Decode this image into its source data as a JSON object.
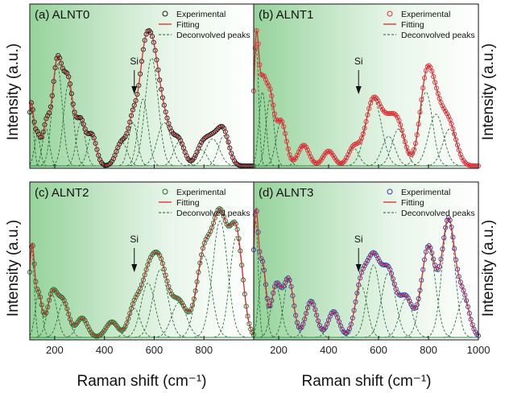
{
  "figure": {
    "xlabel": "Raman shift (cm⁻¹)",
    "ylabel": "Intensity (a.u.)",
    "annotation": "Si"
  },
  "legend": {
    "experimental": "Experimental",
    "fitting": "Fitting",
    "deconvolved": "Deconvolved peaks"
  },
  "colors": {
    "green_shade": "#3fae49",
    "baseline": "#2e8b3a",
    "peaks": "#1f5f2a",
    "fit": "#d92b2b"
  },
  "chart_data": [
    {
      "type": "line",
      "panel": "(a) ALNT0",
      "xlim": [
        100,
        1000
      ],
      "x_ticks": [
        200,
        400,
        600,
        800
      ],
      "marker_color": "#1a1a1a",
      "annotation": {
        "text": "Si",
        "x": 520
      },
      "peaks": [
        {
          "c": 105,
          "h": 0.55,
          "w": 10
        },
        {
          "c": 130,
          "h": 0.28,
          "w": 12
        },
        {
          "c": 165,
          "h": 0.35,
          "w": 14
        },
        {
          "c": 210,
          "h": 0.95,
          "w": 20
        },
        {
          "c": 255,
          "h": 0.75,
          "w": 20
        },
        {
          "c": 305,
          "h": 0.4,
          "w": 18
        },
        {
          "c": 350,
          "h": 0.28,
          "w": 18
        },
        {
          "c": 470,
          "h": 0.22,
          "w": 22
        },
        {
          "c": 515,
          "h": 0.4,
          "w": 18
        },
        {
          "c": 555,
          "h": 0.62,
          "w": 20
        },
        {
          "c": 590,
          "h": 1.0,
          "w": 26
        },
        {
          "c": 640,
          "h": 0.4,
          "w": 28
        },
        {
          "c": 700,
          "h": 0.22,
          "w": 22
        },
        {
          "c": 790,
          "h": 0.15,
          "w": 22
        },
        {
          "c": 835,
          "h": 0.25,
          "w": 28
        },
        {
          "c": 880,
          "h": 0.28,
          "w": 22
        }
      ]
    },
    {
      "type": "line",
      "panel": "(b) ALNT1",
      "xlim": [
        100,
        1000
      ],
      "x_ticks": [
        200,
        400,
        600,
        800,
        1000
      ],
      "marker_color": "#e0303a",
      "annotation": {
        "text": "Si",
        "x": 520
      },
      "peaks": [
        {
          "c": 110,
          "h": 0.8,
          "w": 10
        },
        {
          "c": 135,
          "h": 0.5,
          "w": 14
        },
        {
          "c": 165,
          "h": 0.45,
          "w": 16
        },
        {
          "c": 210,
          "h": 0.3,
          "w": 20
        },
        {
          "c": 300,
          "h": 0.14,
          "w": 22
        },
        {
          "c": 400,
          "h": 0.1,
          "w": 22
        },
        {
          "c": 500,
          "h": 0.12,
          "w": 22
        },
        {
          "c": 580,
          "h": 0.45,
          "w": 32
        },
        {
          "c": 640,
          "h": 0.2,
          "w": 26
        },
        {
          "c": 680,
          "h": 0.25,
          "w": 26
        },
        {
          "c": 790,
          "h": 0.5,
          "w": 26
        },
        {
          "c": 830,
          "h": 0.35,
          "w": 30
        },
        {
          "c": 885,
          "h": 0.25,
          "w": 28
        }
      ]
    },
    {
      "type": "line",
      "panel": "(c) ALNT2",
      "xlim": [
        100,
        1000
      ],
      "x_ticks": [
        200,
        400,
        600,
        800
      ],
      "marker_color": "#1f6b2a",
      "annotation": {
        "text": "Si",
        "x": 520
      },
      "peaks": [
        {
          "c": 108,
          "h": 0.45,
          "w": 10
        },
        {
          "c": 135,
          "h": 0.22,
          "w": 14
        },
        {
          "c": 190,
          "h": 0.22,
          "w": 20
        },
        {
          "c": 235,
          "h": 0.18,
          "w": 22
        },
        {
          "c": 310,
          "h": 0.1,
          "w": 22
        },
        {
          "c": 430,
          "h": 0.08,
          "w": 24
        },
        {
          "c": 520,
          "h": 0.15,
          "w": 24
        },
        {
          "c": 575,
          "h": 0.28,
          "w": 28
        },
        {
          "c": 625,
          "h": 0.35,
          "w": 30
        },
        {
          "c": 700,
          "h": 0.18,
          "w": 30
        },
        {
          "c": 800,
          "h": 0.42,
          "w": 30
        },
        {
          "c": 865,
          "h": 0.6,
          "w": 30
        },
        {
          "c": 930,
          "h": 0.52,
          "w": 26
        }
      ]
    },
    {
      "type": "line",
      "panel": "(d) ALNT3",
      "xlim": [
        100,
        1000
      ],
      "x_ticks": [
        200,
        400,
        600,
        800,
        1000
      ],
      "marker_color": "#3a3aa8",
      "annotation": {
        "text": "Si",
        "x": 520
      },
      "peaks": [
        {
          "c": 108,
          "h": 0.45,
          "w": 10
        },
        {
          "c": 135,
          "h": 0.28,
          "w": 14
        },
        {
          "c": 190,
          "h": 0.2,
          "w": 20
        },
        {
          "c": 240,
          "h": 0.22,
          "w": 20
        },
        {
          "c": 330,
          "h": 0.14,
          "w": 22
        },
        {
          "c": 420,
          "h": 0.1,
          "w": 22
        },
        {
          "c": 530,
          "h": 0.2,
          "w": 24
        },
        {
          "c": 580,
          "h": 0.28,
          "w": 26
        },
        {
          "c": 640,
          "h": 0.25,
          "w": 28
        },
        {
          "c": 710,
          "h": 0.15,
          "w": 26
        },
        {
          "c": 800,
          "h": 0.35,
          "w": 28
        },
        {
          "c": 880,
          "h": 0.45,
          "w": 26
        },
        {
          "c": 940,
          "h": 0.15,
          "w": 24
        }
      ]
    }
  ]
}
